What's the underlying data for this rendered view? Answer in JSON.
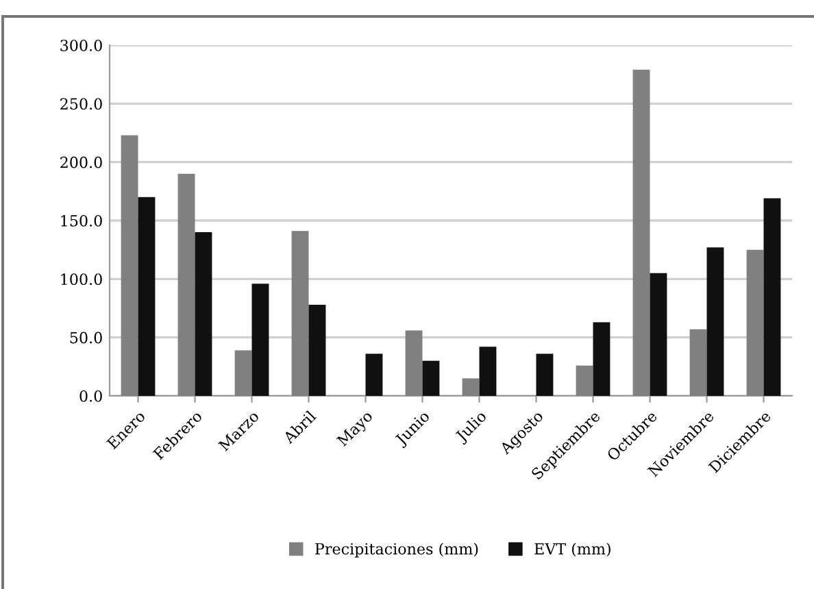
{
  "chart_data": {
    "type": "bar",
    "categories": [
      "Enero",
      "Febrero",
      "Marzo",
      "Abril",
      "Mayo",
      "Junio",
      "Julio",
      "Agosto",
      "Septiembre",
      "Octubre",
      "Noviembre",
      "Diciembre"
    ],
    "series": [
      {
        "name": "Precipitaciones (mm)",
        "color": "#808080",
        "values": [
          223,
          190,
          39,
          141,
          0,
          56,
          15,
          0,
          26,
          279,
          57,
          125
        ]
      },
      {
        "name": "EVT (mm)",
        "color": "#111111",
        "values": [
          170,
          140,
          96,
          78,
          36,
          30,
          42,
          36,
          63,
          105,
          127,
          169
        ]
      }
    ],
    "ylim": [
      0,
      300
    ],
    "yticks": [
      {
        "value": 0,
        "label": "0.0"
      },
      {
        "value": 50,
        "label": "50.0"
      },
      {
        "value": 100,
        "label": "100.0"
      },
      {
        "value": 150,
        "label": "150.0"
      },
      {
        "value": 200,
        "label": "200.0"
      },
      {
        "value": 250,
        "label": "250.0"
      },
      {
        "value": 300,
        "label": "300.0"
      }
    ],
    "grid": "y",
    "legend": "bottom"
  }
}
